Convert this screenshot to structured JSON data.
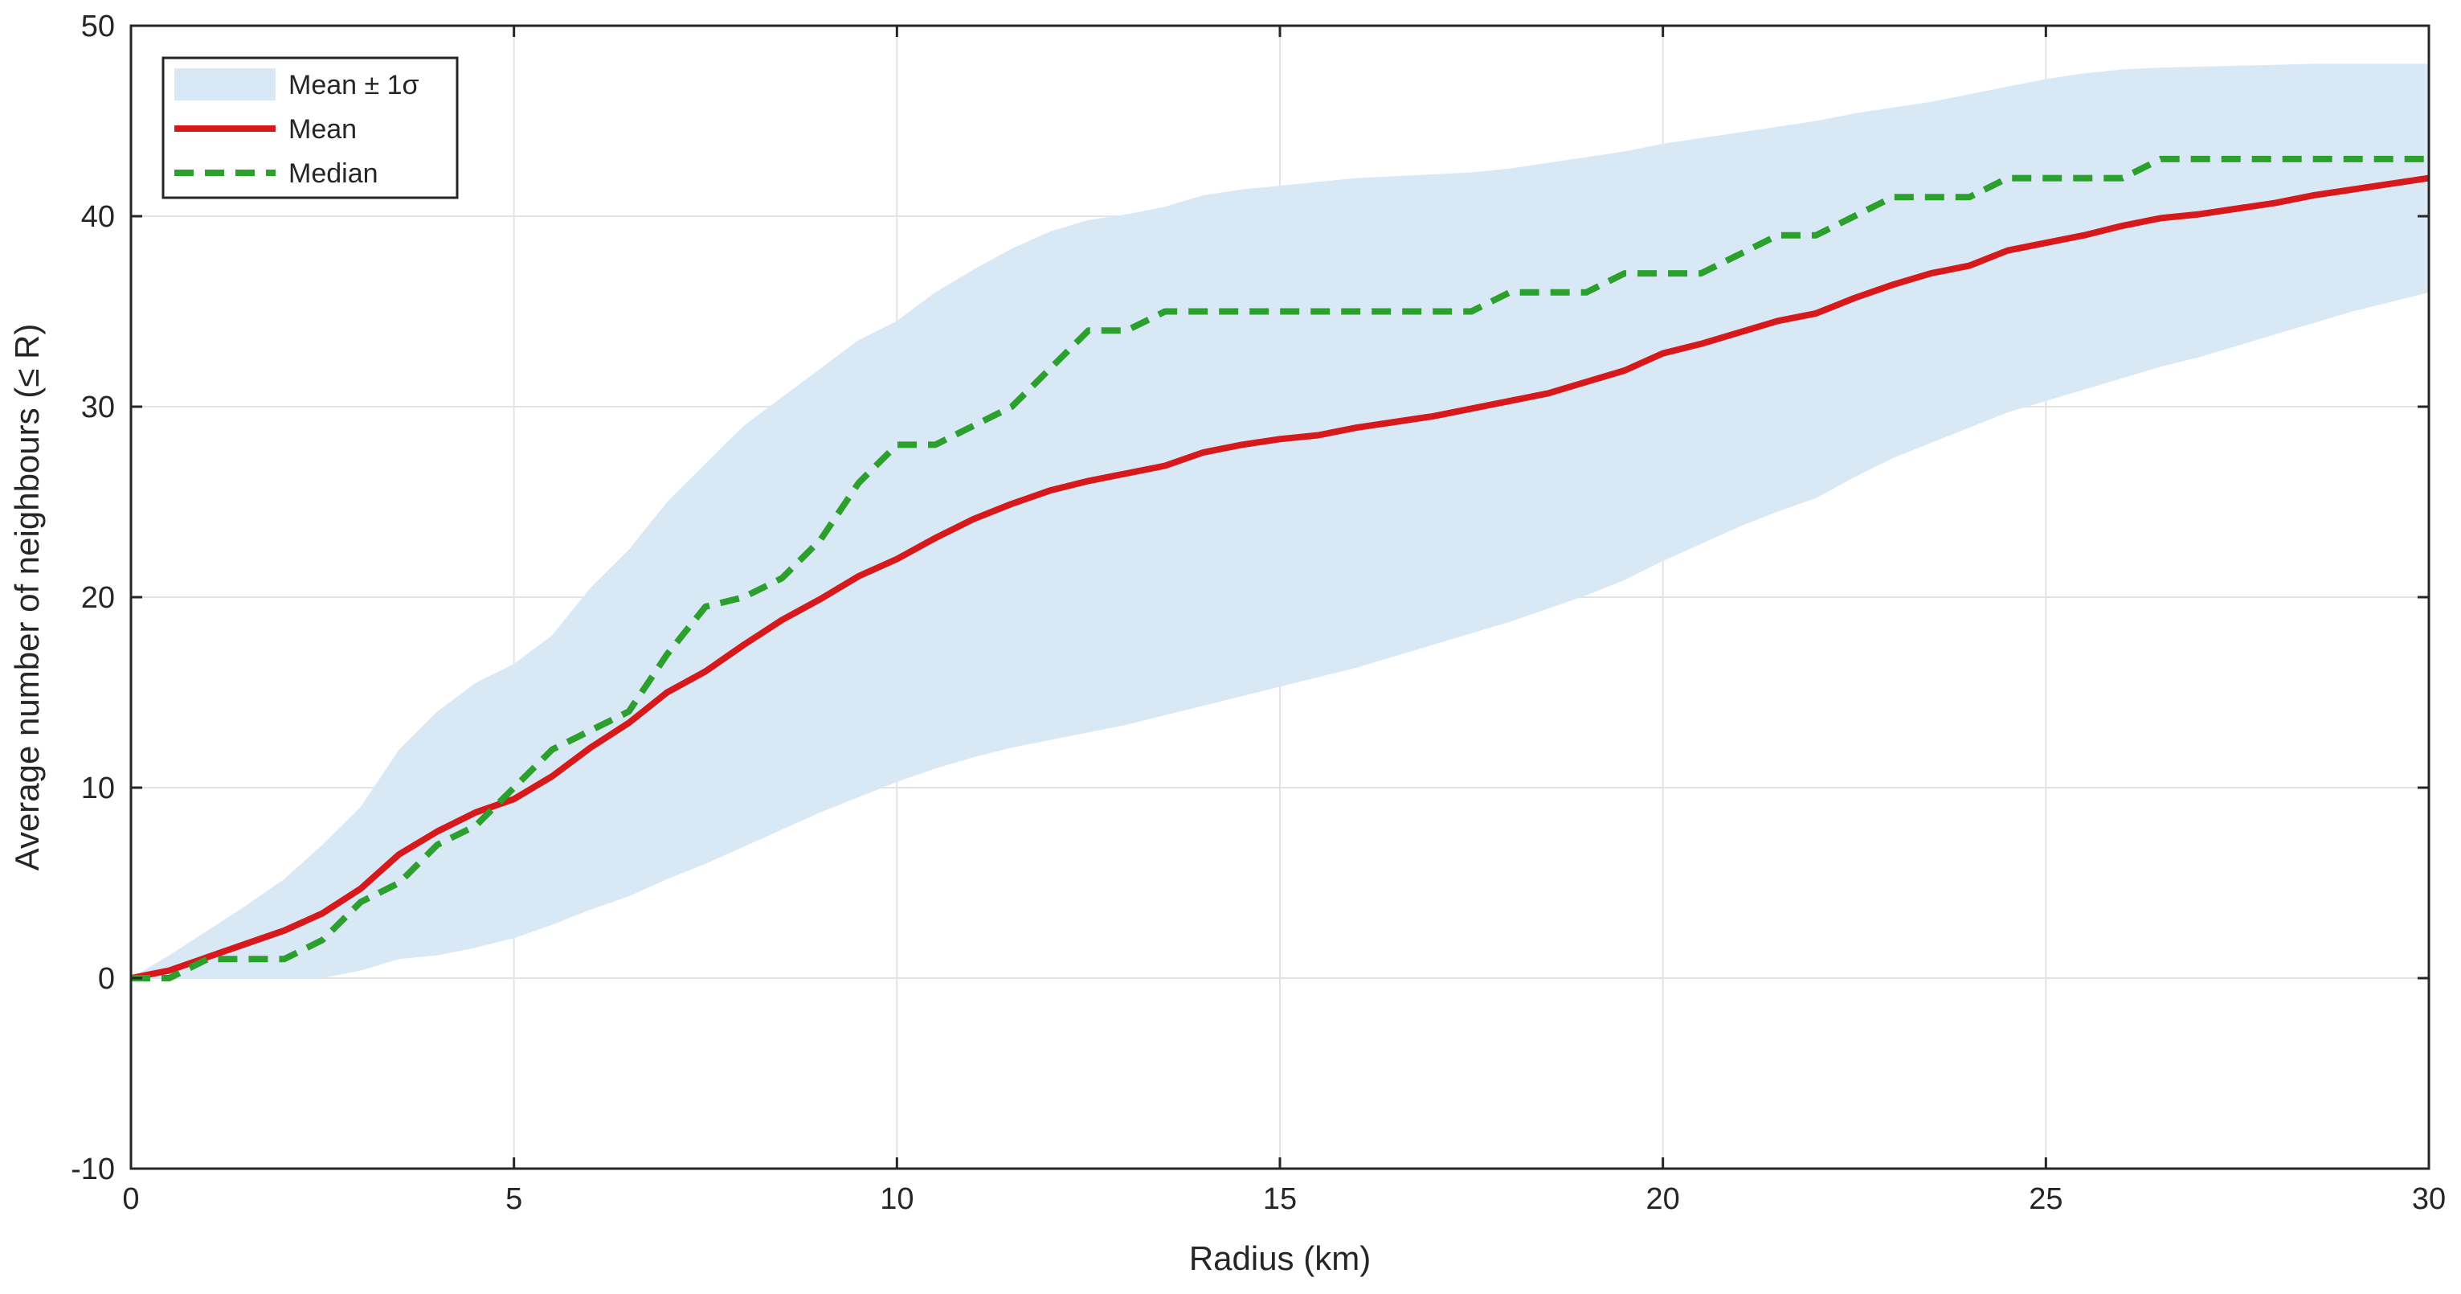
{
  "chart_data": {
    "type": "line",
    "xlabel": "Radius (km)",
    "ylabel": "Average number of neighbours (≤ R)",
    "xlim": [
      0,
      30
    ],
    "ylim": [
      -10,
      50
    ],
    "xticks": [
      "0",
      "5",
      "10",
      "15",
      "20",
      "25",
      "30"
    ],
    "yticks": [
      "-10",
      "0",
      "10",
      "20",
      "30",
      "40",
      "50"
    ],
    "grid": true,
    "legend_position": "top-left",
    "x": [
      0,
      0.5,
      1,
      1.5,
      2,
      2.5,
      3,
      3.5,
      4,
      4.5,
      5,
      5.5,
      6,
      6.5,
      7,
      7.5,
      8,
      8.5,
      9,
      9.5,
      10,
      10.5,
      11,
      11.5,
      12,
      12.5,
      13,
      13.5,
      14,
      14.5,
      15,
      15.5,
      16,
      16.5,
      17,
      17.5,
      18,
      18.5,
      19,
      19.5,
      20,
      20.5,
      21,
      21.5,
      22,
      22.5,
      23,
      23.5,
      24,
      24.5,
      25,
      25.5,
      26,
      26.5,
      27,
      27.5,
      28,
      28.5,
      29,
      29.5,
      30
    ],
    "series": [
      {
        "name": "Mean ± 1σ",
        "kind": "band",
        "color": "#d9e8f5",
        "upper": [
          0,
          1.2,
          2.5,
          3.8,
          5.2,
          7,
          9,
          12,
          14,
          15.5,
          16.5,
          18,
          20.5,
          22.5,
          25,
          27,
          29,
          30.5,
          32,
          33.5,
          34.5,
          36,
          37.2,
          38.3,
          39.2,
          39.8,
          40.1,
          40.5,
          41.1,
          41.4,
          41.6,
          41.8,
          42,
          42.1,
          42.2,
          42.3,
          42.5,
          42.8,
          43.1,
          43.4,
          43.8,
          44.1,
          44.4,
          44.7,
          45,
          45.4,
          45.7,
          46,
          46.4,
          46.8,
          47.2,
          47.5,
          47.7,
          47.8,
          47.85,
          47.9,
          47.95,
          48,
          48,
          48,
          48
        ],
        "lower": [
          0,
          0,
          0,
          0,
          0,
          0,
          0.4,
          1,
          1.2,
          1.6,
          2.1,
          2.8,
          3.6,
          4.3,
          5.2,
          6,
          6.9,
          7.8,
          8.7,
          9.5,
          10.3,
          11,
          11.6,
          12.1,
          12.5,
          12.9,
          13.3,
          13.8,
          14.3,
          14.8,
          15.3,
          15.8,
          16.3,
          16.9,
          17.5,
          18.1,
          18.7,
          19.4,
          20.1,
          20.9,
          21.9,
          22.8,
          23.7,
          24.5,
          25.2,
          26.3,
          27.3,
          28.1,
          28.9,
          29.7,
          30.3,
          30.9,
          31.5,
          32.1,
          32.6,
          33.2,
          33.8,
          34.4,
          35,
          35.5,
          36
        ]
      },
      {
        "name": "Mean",
        "kind": "line",
        "color": "#d7191c",
        "values": [
          0,
          0.4,
          1.1,
          1.8,
          2.5,
          3.4,
          4.7,
          6.5,
          7.7,
          8.7,
          9.4,
          10.6,
          12.1,
          13.4,
          15,
          16.1,
          17.5,
          18.8,
          19.9,
          21.1,
          22,
          23.1,
          24.1,
          24.9,
          25.6,
          26.1,
          26.5,
          26.9,
          27.6,
          28,
          28.3,
          28.5,
          28.9,
          29.2,
          29.5,
          29.9,
          30.3,
          30.7,
          31.3,
          31.9,
          32.8,
          33.3,
          33.9,
          34.5,
          34.9,
          35.7,
          36.4,
          37,
          37.4,
          38.2,
          38.6,
          39,
          39.5,
          39.9,
          40.1,
          40.4,
          40.7,
          41.1,
          41.4,
          41.7,
          42
        ]
      },
      {
        "name": "Median",
        "kind": "dashed-line",
        "color": "#2ca02c",
        "values": [
          0,
          0,
          1,
          1,
          1,
          2,
          4,
          5,
          7,
          8,
          10,
          12,
          13,
          14,
          17,
          19.5,
          20,
          21,
          23,
          26,
          28,
          28,
          29,
          30,
          32,
          34,
          34,
          35,
          35,
          35,
          35,
          35,
          35,
          35,
          35,
          35,
          36,
          36,
          36,
          37,
          37,
          37,
          38,
          39,
          39,
          40,
          41,
          41,
          41,
          42,
          42,
          42,
          42,
          43,
          43,
          43,
          43,
          43,
          43,
          43,
          43
        ]
      }
    ]
  }
}
